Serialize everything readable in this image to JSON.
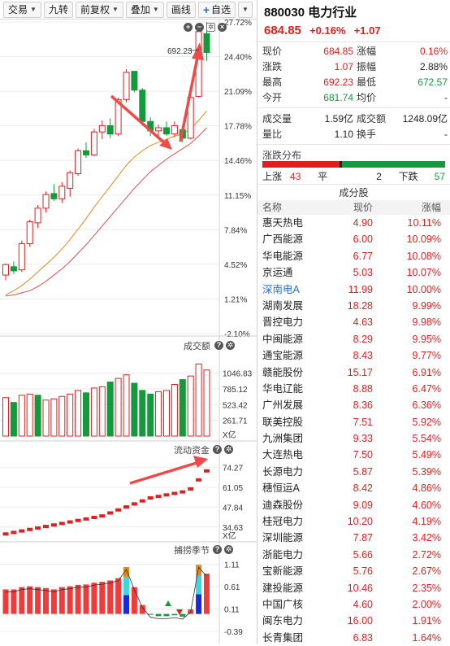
{
  "toolbar": {
    "items": [
      "交易",
      "九转",
      "前复权",
      "叠加",
      "画线"
    ],
    "add_watchlist": "自选",
    "plus": "+"
  },
  "chart": {
    "price_ticks": [
      "27.72%",
      "24.40%",
      "21.09%",
      "17.78%",
      "14.46%",
      "11.15%",
      "7.84%",
      "4.52%",
      "1.21%",
      "-2.10%"
    ],
    "high_label": "692.23",
    "volume_title": "成交额",
    "volume_ticks": [
      "1046.83",
      "785.12",
      "523.42",
      "261.71",
      "X亿"
    ],
    "flow_title": "流动资金",
    "flow_ticks": [
      "74.27",
      "61.05",
      "47.84",
      "34.63",
      "X亿"
    ],
    "season_title": "捕捞季节",
    "season_ticks": [
      "1.11",
      "0.61",
      "0.11",
      "-0.39"
    ],
    "colors": {
      "up": "#e02020",
      "down": "#149a3c",
      "ma1": "#e08a1c",
      "ma2": "#e05050"
    },
    "candles": [
      {
        "o": 3.5,
        "h": 4.6,
        "l": 3.0,
        "c": 4.5
      },
      {
        "o": 4.3,
        "h": 4.8,
        "l": 3.6,
        "c": 3.9
      },
      {
        "o": 4.0,
        "h": 6.8,
        "l": 3.8,
        "c": 6.5
      },
      {
        "o": 6.5,
        "h": 8.8,
        "l": 6.2,
        "c": 8.6
      },
      {
        "o": 8.5,
        "h": 10.2,
        "l": 8.0,
        "c": 9.9
      },
      {
        "o": 9.9,
        "h": 11.5,
        "l": 9.5,
        "c": 11.2
      },
      {
        "o": 11.3,
        "h": 12.2,
        "l": 10.6,
        "c": 10.8
      },
      {
        "o": 10.8,
        "h": 12.4,
        "l": 10.4,
        "c": 12.0
      },
      {
        "o": 11.8,
        "h": 13.5,
        "l": 11.0,
        "c": 13.3
      },
      {
        "o": 13.2,
        "h": 15.6,
        "l": 13.0,
        "c": 15.4
      },
      {
        "o": 15.4,
        "h": 16.2,
        "l": 14.7,
        "c": 15.0
      },
      {
        "o": 15.0,
        "h": 17.5,
        "l": 14.9,
        "c": 17.2
      },
      {
        "o": 17.2,
        "h": 18.3,
        "l": 16.5,
        "c": 17.8
      },
      {
        "o": 17.8,
        "h": 18.5,
        "l": 16.6,
        "c": 17.0
      },
      {
        "o": 17.0,
        "h": 20.5,
        "l": 16.8,
        "c": 20.3
      },
      {
        "o": 20.3,
        "h": 23.2,
        "l": 20.0,
        "c": 22.9
      },
      {
        "o": 23.0,
        "h": 23.0,
        "l": 21.0,
        "c": 21.2
      },
      {
        "o": 21.2,
        "h": 21.4,
        "l": 17.8,
        "c": 18.2
      },
      {
        "o": 18.2,
        "h": 18.6,
        "l": 16.8,
        "c": 17.3
      },
      {
        "o": 17.3,
        "h": 17.9,
        "l": 16.7,
        "c": 17.6
      },
      {
        "o": 17.6,
        "h": 18.2,
        "l": 16.8,
        "c": 17.0
      },
      {
        "o": 17.0,
        "h": 18.2,
        "l": 16.7,
        "c": 17.8
      },
      {
        "o": 17.4,
        "h": 17.8,
        "l": 16.2,
        "c": 16.6
      },
      {
        "o": 16.6,
        "h": 20.8,
        "l": 16.5,
        "c": 20.5
      },
      {
        "o": 20.6,
        "h": 27.5,
        "l": 20.5,
        "c": 26.8
      },
      {
        "o": 26.6,
        "h": 27.72,
        "l": 24.0,
        "c": 24.8
      }
    ],
    "ma1": [
      1.6,
      2.0,
      2.5,
      3.1,
      3.8,
      4.5,
      5.2,
      6.0,
      6.9,
      7.9,
      8.9,
      10.0,
      11.0,
      12.0,
      13.0,
      14.0,
      14.8,
      15.4,
      15.9,
      16.2,
      16.5,
      16.8,
      17.0,
      17.5,
      18.3,
      19.2
    ],
    "ma2": [
      1.5,
      1.6,
      1.8,
      2.0,
      2.4,
      2.9,
      3.5,
      4.1,
      4.8,
      5.6,
      6.4,
      7.3,
      8.2,
      9.1,
      10.0,
      10.9,
      11.8,
      12.6,
      13.4,
      14.0,
      14.6,
      15.1,
      15.6,
      16.1,
      16.8,
      17.6
    ],
    "volumes": [
      {
        "v": 640,
        "up": true
      },
      {
        "v": 560,
        "up": false
      },
      {
        "v": 680,
        "up": true
      },
      {
        "v": 700,
        "up": true
      },
      {
        "v": 680,
        "up": false
      },
      {
        "v": 600,
        "up": true
      },
      {
        "v": 620,
        "up": true
      },
      {
        "v": 660,
        "up": true
      },
      {
        "v": 700,
        "up": true
      },
      {
        "v": 760,
        "up": true
      },
      {
        "v": 720,
        "up": false
      },
      {
        "v": 800,
        "up": true
      },
      {
        "v": 820,
        "up": true
      },
      {
        "v": 900,
        "up": false
      },
      {
        "v": 960,
        "up": true
      },
      {
        "v": 1020,
        "up": true
      },
      {
        "v": 880,
        "up": false
      },
      {
        "v": 760,
        "up": false
      },
      {
        "v": 700,
        "up": false
      },
      {
        "v": 740,
        "up": true
      },
      {
        "v": 760,
        "up": true
      },
      {
        "v": 860,
        "up": true
      },
      {
        "v": 940,
        "up": false
      },
      {
        "v": 1000,
        "up": true
      },
      {
        "v": 1200,
        "up": true
      },
      {
        "v": 1100,
        "up": true
      }
    ],
    "flow": [
      30,
      31,
      32,
      33,
      34,
      35,
      36,
      37,
      38,
      39,
      40,
      41,
      42,
      44,
      46,
      48,
      50,
      52,
      54,
      55,
      56,
      57,
      58,
      60,
      66,
      72
    ],
    "season": [
      {
        "v": 0.55,
        "c": "red"
      },
      {
        "v": 0.55,
        "c": "red"
      },
      {
        "v": 0.6,
        "c": "red"
      },
      {
        "v": 0.62,
        "c": "red"
      },
      {
        "v": 0.6,
        "c": "red"
      },
      {
        "v": 0.58,
        "c": "red"
      },
      {
        "v": 0.55,
        "c": "red"
      },
      {
        "v": 0.6,
        "c": "red"
      },
      {
        "v": 0.62,
        "c": "red"
      },
      {
        "v": 0.65,
        "c": "red"
      },
      {
        "v": 0.66,
        "c": "red"
      },
      {
        "v": 0.7,
        "c": "red"
      },
      {
        "v": 0.72,
        "c": "red"
      },
      {
        "v": 0.75,
        "c": "red"
      },
      {
        "v": 0.8,
        "c": "red"
      },
      {
        "v": 1.05,
        "c": "mixed"
      },
      {
        "v": 0.6,
        "c": "red"
      },
      {
        "v": 0.2,
        "c": "red"
      },
      {
        "v": -0.02,
        "c": "green"
      },
      {
        "v": -0.05,
        "c": "green"
      },
      {
        "v": -0.05,
        "c": "green"
      },
      {
        "v": -0.03,
        "c": "green"
      },
      {
        "v": -0.06,
        "c": "green"
      },
      {
        "v": 0.1,
        "c": "red"
      },
      {
        "v": 1.1,
        "c": "mixed"
      },
      {
        "v": 0.9,
        "c": "red"
      }
    ]
  },
  "quote": {
    "title": "880030 电力行业",
    "price": "684.85",
    "change_pct": "+0.16%",
    "change": "+1.07",
    "rows": [
      {
        "l1": "现价",
        "v1": "684.85",
        "c1": "red",
        "l2": "涨幅",
        "v2": "0.16%",
        "c2": "red"
      },
      {
        "l1": "涨跌",
        "v1": "1.07",
        "c1": "red",
        "l2": "振幅",
        "v2": "2.88%",
        "c2": ""
      },
      {
        "l1": "最高",
        "v1": "692.23",
        "c1": "red",
        "l2": "最低",
        "v2": "672.57",
        "c2": "green"
      },
      {
        "l1": "今开",
        "v1": "681.74",
        "c1": "green",
        "l2": "均价",
        "v2": "-",
        "c2": ""
      }
    ],
    "rows2": [
      {
        "l1": "成交量",
        "v1": "1.59亿",
        "l2": "成交额",
        "v2": "1248.09亿"
      },
      {
        "l1": "量比",
        "v1": "1.10",
        "l2": "换手",
        "v2": "-"
      }
    ]
  },
  "distribution": {
    "title": "涨跌分布",
    "up_label": "上涨",
    "up_count": "43",
    "flat_label": "平",
    "flat_count": "2",
    "down_label": "下跌",
    "down_count": "57",
    "up_frac": 0.42,
    "flat_frac": 0.02,
    "down_frac": 0.56
  },
  "constituents": {
    "title": "成分股",
    "headers": [
      "名称",
      "现价",
      "涨幅"
    ],
    "rows": [
      {
        "name": "惠天热电",
        "price": "4.90",
        "chg": "10.11%",
        "hl": false
      },
      {
        "name": "广西能源",
        "price": "6.00",
        "chg": "10.09%",
        "hl": false
      },
      {
        "name": "华电能源",
        "price": "6.77",
        "chg": "10.08%",
        "hl": false
      },
      {
        "name": "京运通",
        "price": "5.03",
        "chg": "10.07%",
        "hl": false
      },
      {
        "name": "深南电A",
        "price": "11.99",
        "chg": "10.00%",
        "hl": true
      },
      {
        "name": "湖南发展",
        "price": "18.28",
        "chg": "9.99%",
        "hl": false
      },
      {
        "name": "晋控电力",
        "price": "4.63",
        "chg": "9.98%",
        "hl": false
      },
      {
        "name": "中闽能源",
        "price": "8.29",
        "chg": "9.95%",
        "hl": false
      },
      {
        "name": "通宝能源",
        "price": "8.43",
        "chg": "9.77%",
        "hl": false
      },
      {
        "name": "赣能股份",
        "price": "15.17",
        "chg": "6.91%",
        "hl": false
      },
      {
        "name": "华电辽能",
        "price": "8.88",
        "chg": "6.47%",
        "hl": false
      },
      {
        "name": "广州发展",
        "price": "8.36",
        "chg": "6.36%",
        "hl": false
      },
      {
        "name": "联美控股",
        "price": "7.51",
        "chg": "5.92%",
        "hl": false
      },
      {
        "name": "九洲集团",
        "price": "9.33",
        "chg": "5.54%",
        "hl": false
      },
      {
        "name": "大连热电",
        "price": "7.50",
        "chg": "5.49%",
        "hl": false
      },
      {
        "name": "长源电力",
        "price": "5.87",
        "chg": "5.39%",
        "hl": false
      },
      {
        "name": "穗恒运A",
        "price": "8.42",
        "chg": "4.86%",
        "hl": false
      },
      {
        "name": "迪森股份",
        "price": "9.09",
        "chg": "4.60%",
        "hl": false
      },
      {
        "name": "桂冠电力",
        "price": "10.20",
        "chg": "4.19%",
        "hl": false
      },
      {
        "name": "深圳能源",
        "price": "7.87",
        "chg": "3.42%",
        "hl": false
      },
      {
        "name": "浙能电力",
        "price": "5.66",
        "chg": "2.72%",
        "hl": false
      },
      {
        "name": "宝新能源",
        "price": "5.76",
        "chg": "2.67%",
        "hl": false
      },
      {
        "name": "建投能源",
        "price": "10.46",
        "chg": "2.35%",
        "hl": false
      },
      {
        "name": "中国广核",
        "price": "4.60",
        "chg": "2.00%",
        "hl": false
      },
      {
        "name": "闽东电力",
        "price": "16.00",
        "chg": "1.91%",
        "hl": false
      },
      {
        "name": "长青集团",
        "price": "6.83",
        "chg": "1.64%",
        "hl": false
      }
    ]
  }
}
